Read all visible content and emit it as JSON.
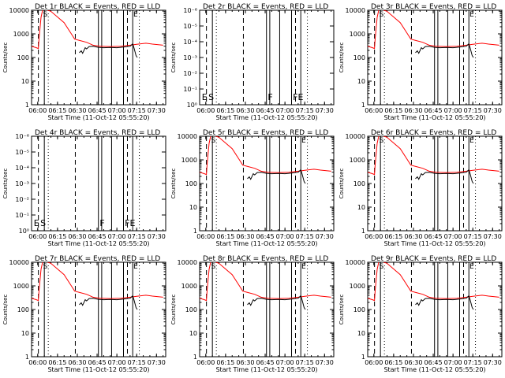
{
  "chart_data": {
    "type": "line",
    "x_ticks": [
      "06:00",
      "06:15",
      "06:30",
      "06:45",
      "07:00",
      "07:15",
      "07:30"
    ],
    "x_range": [
      "05:55:20",
      "07:37:00"
    ],
    "y_scale": "log",
    "xlabel": "Start Time (11-Oct-12 05:55:20)",
    "ylabel": "Counts/sec",
    "legend": "BLACK = Events, RED = LLD",
    "panel_default": {
      "ylim": [
        1,
        10000
      ],
      "yticks": [
        "1",
        "10",
        "100",
        "1000",
        "10000"
      ],
      "red_lld": [
        {
          "t": "05:55:20",
          "v": 300
        },
        {
          "t": "05:59:00",
          "v": 260
        },
        {
          "t": "06:00:30",
          "v": 240
        },
        {
          "t": "06:01:00",
          "v": 650
        },
        {
          "t": "06:02:30",
          "v": 5000
        },
        {
          "t": "06:04:00",
          "v": 12000
        },
        {
          "t": "06:10:00",
          "v": 9000
        },
        {
          "t": "06:20:00",
          "v": 3000
        },
        {
          "t": "06:26:00",
          "v": 900
        },
        {
          "t": "06:28:00",
          "v": 600
        },
        {
          "t": "06:32:00",
          "v": 520
        },
        {
          "t": "06:37:00",
          "v": 440
        },
        {
          "t": "06:42:00",
          "v": 330
        },
        {
          "t": "06:47:00",
          "v": 300
        },
        {
          "t": "06:55:00",
          "v": 290
        },
        {
          "t": "07:03:00",
          "v": 300
        },
        {
          "t": "07:10:00",
          "v": 330
        },
        {
          "t": "07:15:00",
          "v": 360
        },
        {
          "t": "07:22:00",
          "v": 400
        },
        {
          "t": "07:27:00",
          "v": 370
        },
        {
          "t": "07:35:00",
          "v": 330
        }
      ],
      "black_events": [
        {
          "t": "06:31:30",
          "v": 160
        },
        {
          "t": "06:33:00",
          "v": 190
        },
        {
          "t": "06:34:00",
          "v": 150
        },
        {
          "t": "06:36:00",
          "v": 260
        },
        {
          "t": "06:37:00",
          "v": 230
        },
        {
          "t": "06:39:00",
          "v": 290
        },
        {
          "t": "06:42:00",
          "v": 300
        },
        {
          "t": "06:46:00",
          "v": 270
        },
        {
          "t": "06:50:00",
          "v": 260
        },
        {
          "t": "06:55:00",
          "v": 265
        },
        {
          "t": "07:00:00",
          "v": 260
        },
        {
          "t": "07:05:00",
          "v": 275
        },
        {
          "t": "07:10:00",
          "v": 300
        },
        {
          "t": "07:12:00",
          "v": 380
        },
        {
          "t": "07:13:00",
          "v": 250
        },
        {
          "t": "07:14:30",
          "v": 120
        },
        {
          "t": "07:15:30",
          "v": 100
        }
      ],
      "vlines": [
        {
          "t": "06:00:30",
          "style": "dash"
        },
        {
          "t": "06:05:00",
          "style": "solid"
        },
        {
          "t": "06:08:00",
          "style": "dot"
        },
        {
          "t": "06:28:30",
          "style": "dash"
        },
        {
          "t": "06:46:00",
          "style": "solid"
        },
        {
          "t": "06:48:30",
          "style": "solid"
        },
        {
          "t": "06:56:00",
          "style": "solid"
        },
        {
          "t": "07:05:00",
          "style": "solid"
        },
        {
          "t": "07:08:00",
          "style": "dash"
        },
        {
          "t": "07:12:00",
          "style": "solid"
        },
        {
          "t": "07:17:00",
          "style": "dot"
        }
      ]
    },
    "panels": [
      {
        "title": "Det 1r BLACK = Events, RED = LLD"
      },
      {
        "title": "Det 2r BLACK = Events, RED = LLD",
        "empty": true,
        "yticks_empty": [
          "10⁰",
          "10⁻¹",
          "10⁻²",
          "10⁻³",
          "10⁻⁴",
          "10⁻⁵",
          "10⁻⁶"
        ],
        "letters": [
          {
            "t": "05:57:00",
            "s": "E"
          },
          {
            "t": "06:02:00",
            "s": "S"
          },
          {
            "t": "06:47:00",
            "s": "F"
          },
          {
            "t": "07:06:00",
            "s": "FE"
          }
        ]
      },
      {
        "title": "Det 3r BLACK = Events, RED = LLD"
      },
      {
        "title": "Det 4r BLACK = Events, RED = LLD",
        "empty": true,
        "yticks_empty": [
          "10⁰",
          "10⁻¹",
          "10⁻²",
          "10⁻³",
          "10⁻⁴",
          "10⁻⁵",
          "10⁻⁶"
        ],
        "letters": [
          {
            "t": "05:57:00",
            "s": "E"
          },
          {
            "t": "06:02:00",
            "s": "S"
          },
          {
            "t": "06:47:00",
            "s": "F"
          },
          {
            "t": "07:06:00",
            "s": "FE"
          }
        ]
      },
      {
        "title": "Det 5r BLACK = Events, RED = LLD"
      },
      {
        "title": "Det 6r BLACK = Events, RED = LLD"
      },
      {
        "title": "Det 7r BLACK = Events, RED = LLD"
      },
      {
        "title": "Det 8r BLACK = Events, RED = LLD"
      },
      {
        "title": "Det 9r BLACK = Events, RED = LLD"
      }
    ]
  }
}
